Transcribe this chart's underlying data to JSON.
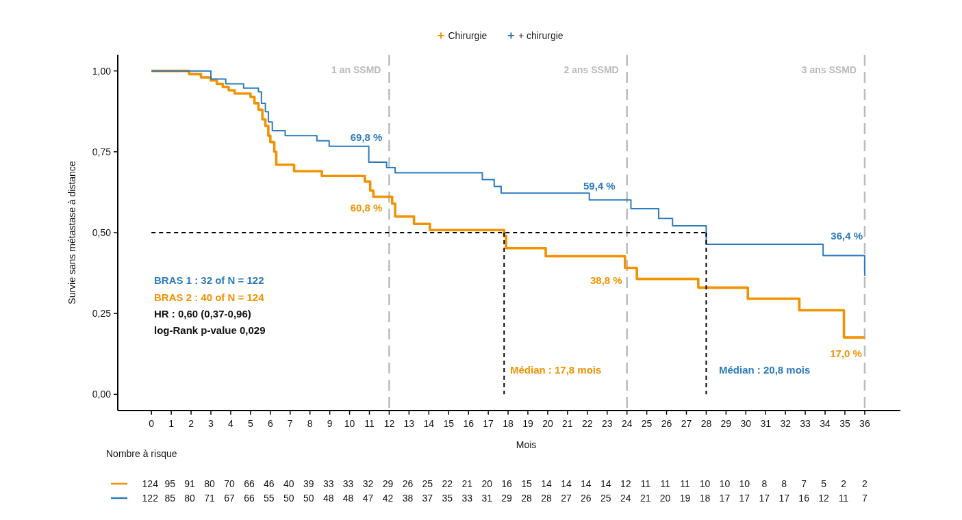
{
  "chart_data": {
    "type": "step",
    "xlabel": "Mois",
    "ylabel": "Survie sans métastase à distance",
    "legend": "top",
    "xlim": [
      -1.7,
      37.8
    ],
    "xticks": [
      0,
      1,
      2,
      3,
      4,
      5,
      6,
      7,
      8,
      9,
      10,
      11,
      12,
      13,
      14,
      15,
      16,
      17,
      18,
      19,
      20,
      21,
      22,
      23,
      24,
      25,
      26,
      27,
      28,
      29,
      30,
      31,
      32,
      33,
      34,
      35,
      36
    ],
    "ylim": [
      -0.05,
      1.05
    ],
    "yticks": [
      {
        "value": 0,
        "label": "0,00"
      },
      {
        "value": 0.25,
        "label": "0,25"
      },
      {
        "value": 0.5,
        "label": "0,50"
      },
      {
        "value": 0.75,
        "label": "0,75"
      },
      {
        "value": 1,
        "label": "1,00"
      }
    ],
    "series": [
      {
        "name": "Chirurgie",
        "color": "#f39200",
        "x": [
          0,
          1.9,
          2.5,
          3.0,
          3.3,
          3.6,
          3.9,
          4.2,
          5.0,
          5.2,
          5.4,
          5.6,
          5.75,
          5.9,
          6.0,
          6.2,
          6.3,
          7.2,
          8.6,
          10.77,
          11.04,
          11.2,
          12.15,
          12.3,
          13.25,
          14.05,
          17.8,
          17.9,
          18.0,
          19.9,
          23.9,
          24.5,
          27.6,
          30.1,
          32.7,
          34.95,
          36
        ],
        "values": [
          1.0,
          0.99,
          0.98,
          0.97,
          0.96,
          0.95,
          0.94,
          0.93,
          0.92,
          0.9,
          0.88,
          0.85,
          0.83,
          0.8,
          0.78,
          0.75,
          0.71,
          0.69,
          0.675,
          0.658,
          0.63,
          0.611,
          0.59,
          0.55,
          0.527,
          0.508,
          0.49,
          0.452,
          0.452,
          0.427,
          0.391,
          0.357,
          0.33,
          0.296,
          0.26,
          0.176,
          0.176
        ]
      },
      {
        "name": "+ chirurgie",
        "color": "#2a7abf",
        "x": [
          0,
          3.0,
          3.75,
          4.65,
          5.4,
          5.55,
          5.75,
          5.9,
          6.1,
          6.75,
          8.35,
          8.97,
          10.97,
          11.87,
          12.3,
          16.7,
          17.3,
          17.65,
          22.1,
          24.2,
          25.6,
          26.3,
          28.0,
          33.9,
          36
        ],
        "values": [
          1.0,
          0.975,
          0.96,
          0.947,
          0.935,
          0.9,
          0.874,
          0.842,
          0.815,
          0.8,
          0.784,
          0.767,
          0.718,
          0.701,
          0.685,
          0.664,
          0.643,
          0.622,
          0.601,
          0.574,
          0.544,
          0.521,
          0.464,
          0.429,
          0.366
        ]
      },
      {
        "type": "line",
        "color": "#000000",
        "line_style": "dashed",
        "x": [
          0,
          28
        ],
        "values": [
          0.5,
          0.5
        ]
      },
      {
        "type": "line",
        "color": "#000000",
        "line_style": "dashed",
        "x": [
          17.8,
          17.8
        ],
        "values": [
          0.5,
          0
        ]
      },
      {
        "type": "line",
        "color": "#000000",
        "line_style": "dashed",
        "x": [
          28,
          28
        ],
        "values": [
          0.5,
          0
        ]
      }
    ],
    "ref_lines": [
      {
        "axis": "x",
        "value": 12,
        "label": "1 an SSMD",
        "color": "#bbbbbb",
        "line_style": "dashed"
      },
      {
        "axis": "x",
        "value": 24,
        "label": "2 ans SSMD",
        "color": "#bbbbbb",
        "line_style": "dashed"
      },
      {
        "axis": "x",
        "value": 36,
        "label": "3 ans SSMD",
        "color": "#bbbbbb",
        "line_style": "dashed"
      }
    ],
    "annotations": [
      {
        "text": "69,8 %",
        "x": 12,
        "y": 0.698
      },
      {
        "text": "60,8 %",
        "x": 12,
        "y": 0.608
      },
      {
        "text": "59,4 %",
        "x": 24,
        "y": 0.594
      },
      {
        "text": "38,8 %",
        "x": 24,
        "y": 0.388
      },
      "36,4 %",
      {
        "text": "17,0 %",
        "x": 36,
        "y": 0.17
      },
      "Médian : 17,8 mois",
      "Médian : 20,8 mois",
      "BRAS 1 : 32 of N = 122",
      "BRAS 2 : 40 of N = 124",
      "HR : 0,60 (0,37-0,96)",
      "log-Rank p-value 0,029",
      "Nombre à risque",
      "124 95 91 80 70 66 46 40 39 33 33 32 29 26 25 22 21 20 16 15 14 14 14 14 12 11 11 11 10 10 10 8 8 7 5 2 2",
      "122 85 80 71 67 66 55 50 50 48 48 47 42 38 37 35 33 31 29 28 28 27 26 25 24 21 20 19 18 17 17 17 17 16 12 11 7"
    ]
  }
}
